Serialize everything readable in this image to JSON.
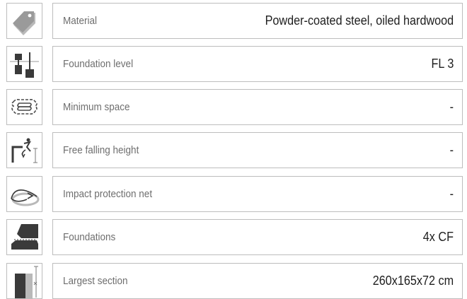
{
  "specs": [
    {
      "icon": "tag-icon",
      "label": "Material",
      "value": "Powder-coated steel, oiled hardwood"
    },
    {
      "icon": "foundation-level-icon",
      "label": "Foundation level",
      "value": "FL 3"
    },
    {
      "icon": "minimum-space-icon",
      "label": "Minimum space",
      "value": "-"
    },
    {
      "icon": "free-fall-height-icon",
      "label": "Free falling height",
      "value": "-"
    },
    {
      "icon": "impact-net-icon",
      "label": "Impact protection net",
      "value": "-"
    },
    {
      "icon": "foundations-icon",
      "label": "Foundations",
      "value": "4x CF"
    },
    {
      "icon": "section-size-icon",
      "label": "Largest section",
      "value": "260x165x72 cm"
    }
  ],
  "colors": {
    "border": "#bdbdbd",
    "label": "#6e6e6e",
    "value": "#1e1e1e",
    "icon_dark": "#3a3a3a",
    "icon_light": "#b9b9b9"
  }
}
